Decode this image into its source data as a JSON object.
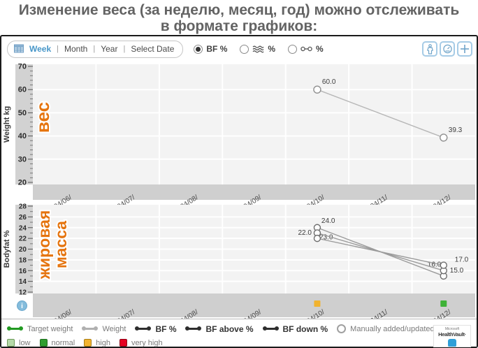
{
  "title": {
    "line1": "Изменение веса (за неделю, месяц, год) можно отслеживать",
    "line2": "в формате графиков:"
  },
  "toolbar": {
    "separator": "|",
    "period_tabs": [
      {
        "label": "Week",
        "active": true
      },
      {
        "label": "Month",
        "active": false
      },
      {
        "label": "Year",
        "active": false
      },
      {
        "label": "Select Date",
        "active": false
      }
    ],
    "view_options": [
      {
        "label": "BF %",
        "selected": true,
        "icon": ""
      },
      {
        "label": "%",
        "selected": false,
        "icon": "waves-icon"
      },
      {
        "label": "%",
        "selected": false,
        "icon": "link-icon"
      }
    ],
    "action_buttons": [
      {
        "icon": "body-icon"
      },
      {
        "icon": "gauge-icon"
      },
      {
        "icon": "add-icon"
      }
    ]
  },
  "chart_data": [
    {
      "type": "line",
      "ylabel": "Weight kg",
      "annotation_lines": [
        "вес"
      ],
      "annotation_color": "#e5740e",
      "ylim": [
        20,
        70
      ],
      "ytick_step": 10,
      "grid": true,
      "x_categories": [
        "04/06/",
        "04/07/",
        "04/08/",
        "04/09/",
        "04/10/",
        "04/11/",
        "04/12/"
      ],
      "series": [
        {
          "name": "Weight",
          "color": "#b7b7b7",
          "manually_added": true,
          "points": [
            {
              "x": "04/10/",
              "y": 60.0,
              "label": "60.0",
              "dx": 7,
              "dy": -8,
              "anchor": "start"
            },
            {
              "x": "04/12/",
              "y": 39.3,
              "label": "39.3",
              "dx": 7,
              "dy": -8,
              "anchor": "start"
            }
          ]
        }
      ]
    },
    {
      "type": "line",
      "ylabel": "Bodyfat %",
      "annotation_lines": [
        "жировая",
        "масса"
      ],
      "annotation_color": "#e5740e",
      "ylim": [
        12,
        28
      ],
      "ytick_step": 2,
      "grid": true,
      "x_categories": [
        "04/06/",
        "04/07/",
        "04/08/",
        "04/09/",
        "04/10/",
        "04/11/",
        "04/12/"
      ],
      "series": [
        {
          "name": "BF above %",
          "color": "#9b9b9b",
          "manually_added": true,
          "points": [
            {
              "x": "04/10/",
              "y": 24.0,
              "label": "24.0",
              "dx": 6,
              "dy": -7,
              "anchor": "start"
            },
            {
              "x": "04/12/",
              "y": 15.0,
              "label": "15.0",
              "dx": 9,
              "dy": -5,
              "anchor": "start"
            }
          ]
        },
        {
          "name": "BF %",
          "color": "#9b9b9b",
          "manually_added": true,
          "points": [
            {
              "x": "04/10/",
              "y": 23.0,
              "label": "23.0",
              "dx": 3,
              "dy": 9,
              "anchor": "start"
            },
            {
              "x": "04/12/",
              "y": 16.0,
              "label": "16.0",
              "dx": -23,
              "dy": -6,
              "anchor": "start"
            }
          ]
        },
        {
          "name": "BF down %",
          "color": "#9b9b9b",
          "manually_added": true,
          "points": [
            {
              "x": "04/10/",
              "y": 22.0,
              "label": "22.0",
              "dx": -8,
              "dy": -5,
              "anchor": "end"
            },
            {
              "x": "04/12/",
              "y": 17.0,
              "label": "17.0",
              "dx": 16,
              "dy": -5,
              "anchor": "start"
            }
          ]
        }
      ],
      "status_markers": [
        {
          "x": "04/10/",
          "level": "high",
          "color": "#f1b32f"
        },
        {
          "x": "04/12/",
          "level": "normal",
          "color": "#3eb237"
        }
      ]
    }
  ],
  "legend": {
    "row1": [
      {
        "type": "line",
        "color": "#229a22",
        "label": "Target weight",
        "bold": false
      },
      {
        "type": "line",
        "color": "#b0b0b0",
        "label": "Weight",
        "bold": false
      },
      {
        "type": "line",
        "color": "#2e2e2e",
        "label": "BF %",
        "bold": true
      },
      {
        "type": "line",
        "color": "#2e2e2e",
        "label": "BF above %",
        "bold": true
      },
      {
        "type": "line",
        "color": "#2e2e2e",
        "label": "BF down %",
        "bold": true
      },
      {
        "type": "circle",
        "color": "#a0a0a0",
        "label": "Manually added/updated",
        "bold": false
      }
    ],
    "row2": [
      {
        "color": "#b5d8a8",
        "border": "#6a9a58",
        "label": "low"
      },
      {
        "color": "#2f9e2f",
        "border": "#1d6e1d",
        "label": "normal"
      },
      {
        "color": "#f2b431",
        "border": "#a87d16",
        "label": "high"
      },
      {
        "color": "#e60021",
        "border": "#8e0015",
        "label": "very high"
      }
    ]
  },
  "info_icon": "i",
  "branding": {
    "line1": "Microsoft",
    "line2": "HealthVault·"
  }
}
